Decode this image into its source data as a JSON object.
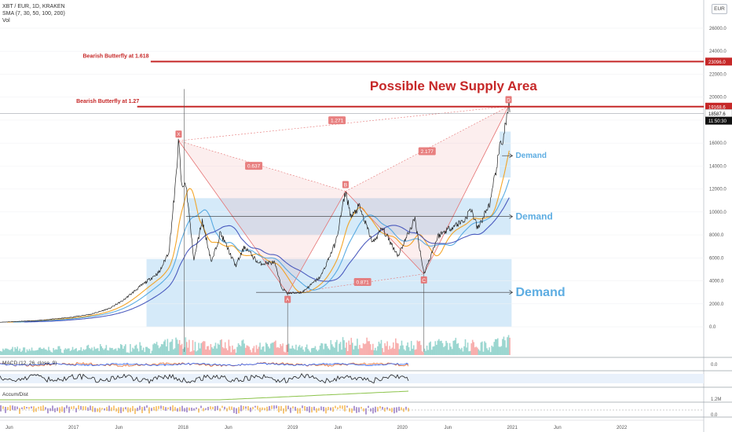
{
  "header": {
    "symbol_line": "XBT / EUR, 1D, KRAKEN",
    "sma_line": "SMA (7, 30, 50, 100, 200)",
    "vol_line": "Vol",
    "currency_badge": "EUR"
  },
  "panes": {
    "macd_label": "MACD (12, 26, close, 9)",
    "macd_tick": "0.0",
    "accum_label": "Accum/Dist",
    "accum_tick": "1.2M",
    "bottom_tick": "0.0"
  },
  "price_axis": {
    "ticks": [
      "26000.0",
      "24000.0",
      "22000.0",
      "20000.0",
      "18000.0",
      "16000.0",
      "14000.0",
      "12000.0",
      "10000.0",
      "8000.0",
      "6000.0",
      "4000.0",
      "2000.0",
      "0.0"
    ],
    "badges": [
      {
        "text": "23096.0",
        "color": "#c62828",
        "value": 23096
      },
      {
        "text": "19168.6",
        "color": "#c62828",
        "value": 19168.6
      },
      {
        "text": "18587.6",
        "color": "#ffffff",
        "value": 18587.6
      },
      {
        "text": "11:50:30",
        "color": "#111111",
        "value": 17950
      }
    ]
  },
  "time_axis": {
    "labels": [
      "Jun",
      "2017",
      "Jun",
      "2018",
      "Jun",
      "2019",
      "Jun",
      "2020",
      "Jun",
      "2021",
      "Jun",
      "2022"
    ]
  },
  "annotations": {
    "title": "Possible New Supply Area",
    "bf_1618": "Bearish Butterfly at 1.618",
    "bf_127": "Bearish Butterfly at 1.27",
    "demand_labels": [
      "Demand",
      "Demand",
      "Demand"
    ],
    "ratios": [
      "1.271",
      "0.637",
      "2.177",
      "0.871"
    ],
    "points": [
      "X",
      "A",
      "B",
      "C",
      "D"
    ]
  },
  "chart_data": {
    "type": "line",
    "title": "XBT / EUR, 1D, KRAKEN",
    "xlabel": "",
    "ylabel": "",
    "ylim": [
      -1500,
      27500
    ],
    "x_range": [
      "2016-05-01",
      "2022-10-01"
    ],
    "series": [
      {
        "name": "XBT / EUR",
        "points": [
          [
            "2016-05-01",
            400
          ],
          [
            "2016-09-01",
            540
          ],
          [
            "2016-12-15",
            800
          ],
          [
            "2017-03-01",
            1100
          ],
          [
            "2017-05-01",
            1600
          ],
          [
            "2017-06-15",
            2300
          ],
          [
            "2017-08-15",
            3600
          ],
          [
            "2017-10-15",
            4800
          ],
          [
            "2017-11-15",
            6600
          ],
          [
            "2017-12-07",
            12500
          ],
          [
            "2017-12-17",
            16200
          ],
          [
            "2017-12-28",
            12000
          ],
          [
            "2018-01-10",
            12500
          ],
          [
            "2018-02-06",
            5800
          ],
          [
            "2018-03-05",
            9300
          ],
          [
            "2018-04-06",
            5600
          ],
          [
            "2018-05-05",
            8200
          ],
          [
            "2018-06-25",
            5300
          ],
          [
            "2018-07-25",
            7000
          ],
          [
            "2018-09-10",
            5500
          ],
          [
            "2018-11-01",
            5600
          ],
          [
            "2018-11-25",
            3400
          ],
          [
            "2018-12-15",
            2900
          ],
          [
            "2019-02-01",
            3000
          ],
          [
            "2019-04-05",
            4400
          ],
          [
            "2019-05-25",
            7400
          ],
          [
            "2019-06-26",
            11800
          ],
          [
            "2019-07-15",
            9500
          ],
          [
            "2019-08-10",
            10500
          ],
          [
            "2019-09-25",
            7300
          ],
          [
            "2019-10-26",
            8600
          ],
          [
            "2019-12-18",
            6200
          ],
          [
            "2020-02-12",
            9400
          ],
          [
            "2020-03-13",
            4600
          ],
          [
            "2020-04-29",
            7900
          ],
          [
            "2020-06-01",
            8500
          ],
          [
            "2020-07-27",
            9300
          ],
          [
            "2020-08-17",
            10300
          ],
          [
            "2020-09-08",
            8500
          ],
          [
            "2020-10-21",
            10900
          ],
          [
            "2020-11-24",
            16000
          ],
          [
            "2020-12-01",
            16300
          ],
          [
            "2020-12-16",
            18500
          ],
          [
            "2020-12-20",
            19200
          ],
          [
            "2020-12-24",
            18700
          ]
        ]
      }
    ],
    "harmonic_pattern": {
      "name": "Bearish Butterfly",
      "points": [
        {
          "label": "X",
          "date": "2017-12-17",
          "value": 16200
        },
        {
          "label": "A",
          "date": "2018-12-15",
          "value": 2900
        },
        {
          "label": "B",
          "date": "2019-06-26",
          "value": 11800
        },
        {
          "label": "C",
          "date": "2020-03-13",
          "value": 4600
        },
        {
          "label": "D",
          "date": "2020-12-20",
          "value": 19200
        }
      ]
    },
    "levels": [
      {
        "label": "Bearish Butterfly at 1.618",
        "value": 23096
      },
      {
        "label": "Bearish Butterfly at 1.27",
        "value": 19168.6
      }
    ],
    "zones": [
      {
        "label": "Demand",
        "low": 13000,
        "high": 17000
      },
      {
        "label": "Demand",
        "low": 8000,
        "high": 11200
      },
      {
        "label": "Demand",
        "low": 0,
        "high": 5900
      }
    ],
    "colors": {
      "up": "#26a69a",
      "down": "#ef5350",
      "pattern": "#e57373",
      "resistance": "#c62828",
      "demand": "#90c8ef"
    }
  }
}
